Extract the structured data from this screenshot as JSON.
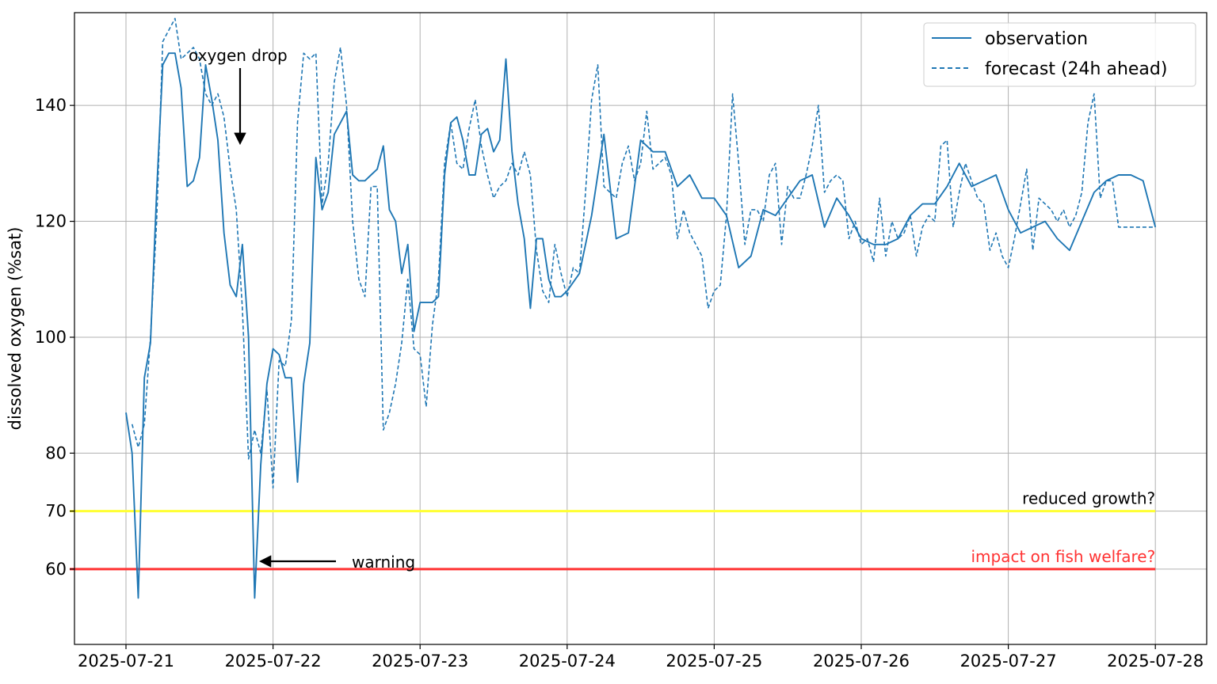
{
  "chart_data": {
    "type": "line",
    "title": "",
    "xlabel": "",
    "ylabel": "dissolved oxygen (%sat)",
    "xlim": [
      "2025-07-20T22:00",
      "2025-07-28T04:00"
    ],
    "ylim": [
      47,
      156
    ],
    "grid": true,
    "legend_position": "top-right",
    "x_ticks": [
      "2025-07-21",
      "2025-07-22",
      "2025-07-23",
      "2025-07-24",
      "2025-07-25",
      "2025-07-26",
      "2025-07-27",
      "2025-07-28"
    ],
    "y_ticks": [
      60,
      70,
      80,
      100,
      120,
      140
    ],
    "colors": {
      "series": "#1f77b4",
      "warning_line": "#ffff33",
      "critical_line": "#ff3333",
      "critical_text": "#ff3333",
      "annotation": "#000000"
    },
    "series": [
      {
        "name": "observation",
        "style": "solid",
        "x_hours": [
          0,
          1,
          2,
          3,
          4,
          5,
          6,
          7,
          8,
          9,
          10,
          11,
          12,
          13,
          14,
          15,
          16,
          17,
          18,
          19,
          20,
          21,
          22,
          23,
          24,
          25,
          26,
          27,
          28,
          29,
          30,
          31,
          32,
          33,
          34,
          35,
          36,
          37,
          38,
          39,
          40,
          41,
          42,
          43,
          44,
          45,
          46,
          47,
          48,
          49,
          50,
          51,
          52,
          53,
          54,
          55,
          56,
          57,
          58,
          59,
          60,
          61,
          62,
          63,
          64,
          65,
          66,
          67,
          68,
          69,
          70,
          71,
          72,
          74,
          76,
          78,
          80,
          82,
          84,
          86,
          88,
          90,
          92,
          94,
          96,
          98,
          100,
          102,
          104,
          106,
          108,
          110,
          112,
          114,
          116,
          118,
          120,
          122,
          124,
          126,
          128,
          130,
          132,
          134,
          136,
          138,
          140,
          142,
          144,
          146,
          148,
          150,
          152,
          154,
          156,
          158,
          160,
          162,
          164,
          166,
          168
        ],
        "values": [
          87,
          80,
          55,
          93,
          99,
          125,
          147,
          149,
          149,
          143,
          126,
          127,
          131,
          147,
          141,
          134,
          118,
          109,
          107,
          116,
          100,
          55,
          78,
          92,
          98,
          97,
          93,
          93,
          75,
          92,
          99,
          131,
          122,
          125,
          135,
          137,
          139,
          128,
          127,
          127,
          128,
          129,
          133,
          122,
          120,
          111,
          116,
          101,
          106,
          106,
          106,
          107,
          128,
          137,
          138,
          134,
          128,
          128,
          135,
          136,
          132,
          134,
          148,
          132,
          123,
          117,
          105,
          117,
          117,
          110,
          107,
          107,
          108,
          111,
          121,
          135,
          117,
          118,
          134,
          132,
          132,
          126,
          128,
          124,
          124,
          121,
          112,
          114,
          122,
          121,
          124,
          127,
          128,
          119,
          124,
          121,
          117,
          116,
          116,
          117,
          121,
          123,
          123,
          126,
          130,
          126,
          127,
          128,
          122,
          118,
          119,
          120,
          117,
          115,
          120,
          125,
          127,
          128,
          128,
          127,
          119
        ],
        "x_hours_note_ignored": null
      },
      {
        "name": "forecast (24h ahead)",
        "style": "dashed",
        "x_hours": [
          1,
          2,
          3,
          4,
          5,
          6,
          7,
          8,
          9,
          10,
          11,
          12,
          13,
          14,
          15,
          16,
          17,
          18,
          19,
          20,
          21,
          22,
          23,
          24,
          25,
          26,
          27,
          28,
          29,
          30,
          31,
          32,
          33,
          34,
          35,
          36,
          37,
          38,
          39,
          40,
          41,
          42,
          43,
          44,
          45,
          46,
          47,
          48,
          49,
          50,
          51,
          52,
          53,
          54,
          55,
          56,
          57,
          58,
          59,
          60,
          61,
          62,
          63,
          64,
          65,
          66,
          67,
          68,
          69,
          70,
          71,
          72,
          73,
          74,
          75,
          76,
          77,
          78,
          79,
          80,
          81,
          82,
          83,
          84,
          85,
          86,
          87,
          88,
          89,
          90,
          91,
          92,
          93,
          94,
          95,
          96,
          97,
          98,
          99,
          100,
          101,
          102,
          103,
          104,
          105,
          106,
          107,
          108,
          109,
          110,
          111,
          112,
          113,
          114,
          115,
          116,
          117,
          118,
          119,
          120,
          121,
          122,
          123,
          124,
          125,
          126,
          127,
          128,
          129,
          130,
          131,
          132,
          133,
          134,
          135,
          136,
          137,
          138,
          139,
          140,
          141,
          142,
          143,
          144,
          145,
          146,
          147,
          148,
          149,
          150,
          151,
          152,
          153,
          154,
          155,
          156,
          157,
          158,
          159,
          160,
          161,
          162,
          163,
          164,
          165,
          166,
          167,
          168
        ],
        "values": [
          85,
          81,
          85,
          100,
          120,
          151,
          153,
          155,
          148,
          149,
          150,
          148,
          142,
          140,
          142,
          138,
          129,
          122,
          105,
          79,
          84,
          80,
          91,
          74,
          96,
          95,
          103,
          137,
          149,
          148,
          149,
          123,
          130,
          144,
          150,
          140,
          120,
          110,
          107,
          126,
          126,
          84,
          87,
          92,
          99,
          110,
          98,
          97,
          88,
          102,
          110,
          130,
          137,
          130,
          129,
          136,
          141,
          133,
          128,
          124,
          126,
          127,
          130,
          128,
          132,
          128,
          115,
          108,
          106,
          116,
          111,
          107,
          112,
          111,
          125,
          141,
          147,
          126,
          125,
          124,
          130,
          133,
          127,
          130,
          139,
          129,
          130,
          131,
          128,
          117,
          122,
          118,
          116,
          114,
          105,
          108,
          109,
          121,
          142,
          130,
          116,
          122,
          122,
          120,
          128,
          130,
          116,
          126,
          124,
          124,
          128,
          133,
          140,
          125,
          127,
          128,
          127,
          117,
          120,
          116,
          117,
          113,
          124,
          114,
          120,
          117,
          118,
          121,
          114,
          119,
          121,
          120,
          133,
          134,
          119,
          125,
          130,
          127,
          124,
          123,
          115,
          118,
          114,
          112,
          117,
          123,
          129,
          115,
          124,
          123,
          122,
          120,
          122,
          119,
          121,
          125,
          137,
          142,
          124,
          127,
          127,
          119,
          119,
          119,
          119,
          119,
          119,
          119
        ],
        "x_hours_note_ignored": null
      }
    ],
    "reference_lines": [
      {
        "y": 70,
        "label": "reduced growth?",
        "color": "#ffff33",
        "text_color": "#000000"
      },
      {
        "y": 60,
        "label": "impact on fish welfare?",
        "color": "#ff3333",
        "text_color": "#ff3333"
      }
    ],
    "annotations": [
      {
        "text": "oxygen drop",
        "x_hour": 20,
        "y": 136,
        "arrow": "down"
      },
      {
        "text": "warning",
        "x_hour": 22,
        "y": 64,
        "arrow": "left"
      }
    ]
  }
}
